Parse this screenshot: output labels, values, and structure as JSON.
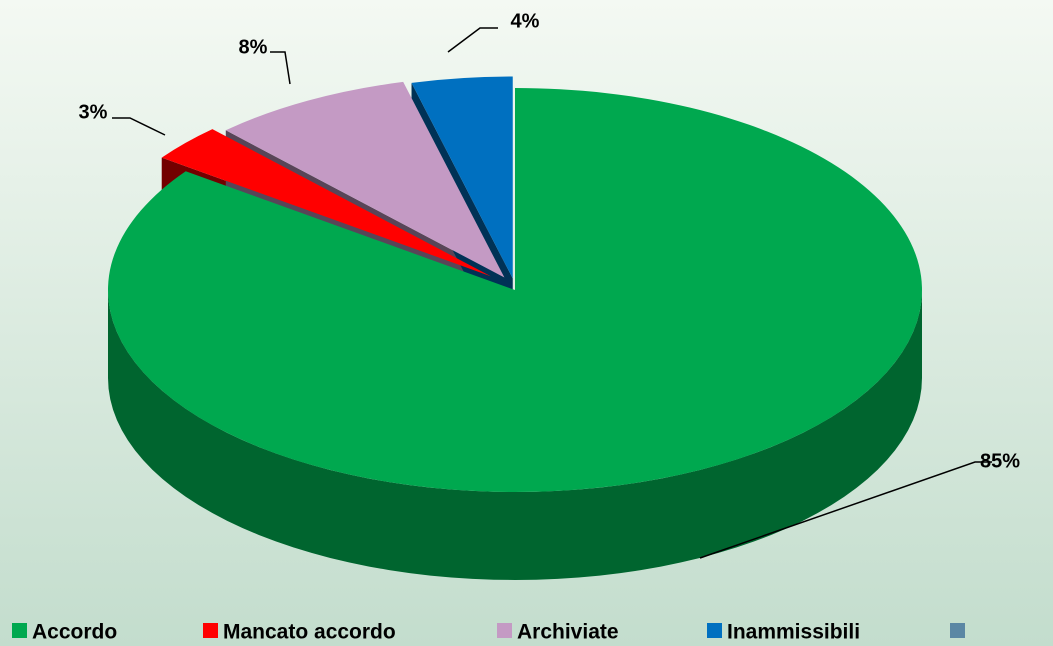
{
  "chart_data": {
    "type": "pie",
    "categories": [
      "Accordo",
      "Mancato accordo",
      "Archiviate",
      "Inammissibili",
      null
    ],
    "values": [
      85,
      3,
      8,
      4,
      0
    ],
    "value_labels": [
      "85%",
      "3%",
      "8%",
      "4%",
      null
    ],
    "colors": [
      "#00a84f",
      "#ff0000",
      "#c49ac4",
      "#0070c0",
      "#5b87a4"
    ],
    "legend": "bottom"
  }
}
